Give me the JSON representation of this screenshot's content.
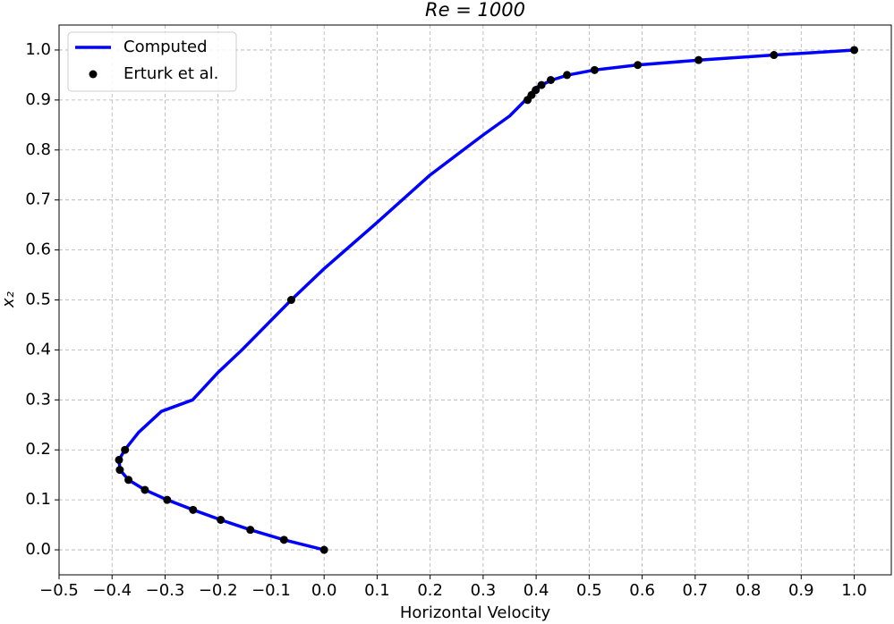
{
  "chart_data": {
    "type": "line",
    "title": "Re = 1000",
    "x_label": "Horizontal Velocity",
    "y_label": "x₂",
    "xlim": [
      -0.5,
      1.07
    ],
    "ylim": [
      -0.05,
      1.05
    ],
    "xticks": [
      {
        "value": -0.5,
        "label": "−0.5"
      },
      {
        "value": -0.4,
        "label": "−0.4"
      },
      {
        "value": -0.3,
        "label": "−0.3"
      },
      {
        "value": -0.2,
        "label": "−0.2"
      },
      {
        "value": -0.1,
        "label": "−0.1"
      },
      {
        "value": 0,
        "label": "0.0"
      },
      0.1,
      0.2,
      0.3,
      0.4,
      0.5,
      0.6,
      0.7,
      0.8,
      0.9,
      {
        "value": 1,
        "label": "1.0"
      }
    ],
    "yticks": [
      {
        "value": 0,
        "label": "0.0"
      },
      0.1,
      0.2,
      0.3,
      0.4,
      0.5,
      0.6,
      0.7,
      0.8,
      0.9,
      {
        "value": 1,
        "label": "1.0"
      }
    ],
    "grid": true,
    "legend": "upper left",
    "series": [
      {
        "name": "Computed",
        "type": "line",
        "color": "#0000ff",
        "x": [
          0,
          -0.076,
          -0.139,
          -0.195,
          -0.247,
          -0.296,
          -0.338,
          -0.369,
          -0.385,
          -0.387,
          -0.376,
          -0.35,
          -0.307,
          -0.248,
          -0.2,
          -0.155,
          -0.062,
          0,
          0.1,
          0.2,
          0.3,
          0.35,
          0.38,
          0.4,
          0.43,
          0.46,
          0.51,
          0.59,
          0.71,
          0.85,
          1
        ],
        "y": [
          0,
          0.02,
          0.04,
          0.06,
          0.08,
          0.1,
          0.12,
          0.14,
          0.16,
          0.18,
          0.2,
          0.235,
          0.277,
          0.3,
          0.355,
          0.4,
          0.5,
          0.5625,
          0.655,
          0.75,
          0.83,
          0.868,
          0.9,
          0.925,
          0.94,
          0.95,
          0.96,
          0.97,
          0.98,
          0.99,
          1
        ]
      },
      {
        "name": "Erturk et al.",
        "type": "scatter",
        "color": "#000000",
        "x": [
          1.0,
          0.8486,
          0.7065,
          0.5917,
          0.5102,
          0.4582,
          0.4276,
          0.4101,
          0.3993,
          0.3913,
          0.3838,
          -0.062,
          -0.3756,
          -0.3869,
          -0.3854,
          -0.369,
          -0.3381,
          -0.296,
          -0.2472,
          -0.1951,
          -0.1392,
          -0.0757,
          0
        ],
        "y": [
          1.0,
          0.99,
          0.98,
          0.97,
          0.96,
          0.95,
          0.94,
          0.93,
          0.92,
          0.91,
          0.9,
          0.5,
          0.2,
          0.18,
          0.16,
          0.14,
          0.12,
          0.1,
          0.08,
          0.06,
          0.04,
          0.02,
          0
        ]
      }
    ]
  }
}
